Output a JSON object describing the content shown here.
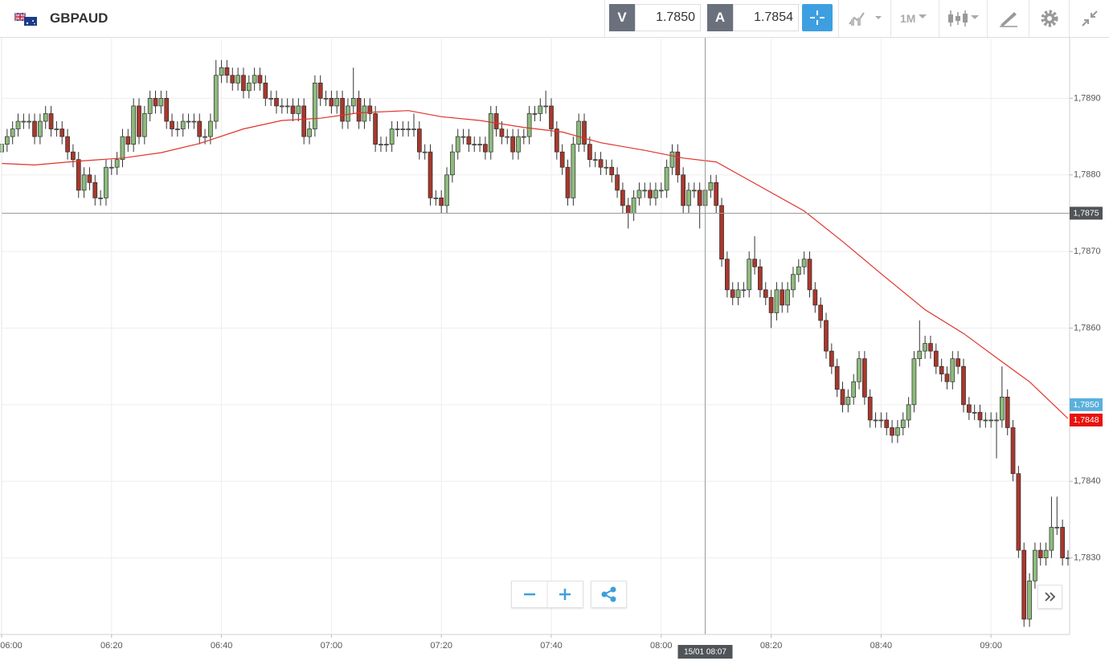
{
  "toolbar": {
    "symbol": "GBPAUD",
    "sell_label": "V",
    "sell_price": "1.7850",
    "buy_label": "A",
    "buy_price": "1.7854",
    "timeframe": "1M"
  },
  "chart_data": {
    "type": "candlestick",
    "open": [
      1.7883,
      1.7884,
      1.7885,
      1.7886,
      1.7887,
      1.7887,
      1.7887,
      1.7885,
      1.7887,
      1.7888,
      1.7886,
      1.7886,
      1.7885,
      1.7883,
      1.7882,
      1.7878,
      1.788,
      1.7879,
      1.7877,
      1.7877,
      1.7881,
      1.7881,
      1.7882,
      1.7885,
      1.7884,
      1.7889,
      1.7885,
      1.7888,
      1.789,
      1.7889,
      1.789,
      1.7887,
      1.7886,
      1.7886,
      1.7887,
      1.7887,
      1.7887,
      1.7885,
      1.7885,
      1.7887,
      1.7893,
      1.7894,
      1.7893,
      1.7892,
      1.7893,
      1.7891,
      1.7892,
      1.7893,
      1.7892,
      1.789,
      1.789,
      1.7889,
      1.7889,
      1.7889,
      1.7888,
      1.7889,
      1.7885,
      1.7886,
      1.7892,
      1.789,
      1.789,
      1.7889,
      1.789,
      1.7887,
      1.7889,
      1.789,
      1.7887,
      1.7889,
      1.7888,
      1.7884,
      1.7884,
      1.7884,
      1.7886,
      1.7886,
      1.7886,
      1.7886,
      1.7886,
      1.7883,
      1.7883,
      1.7877,
      1.7877,
      1.7876,
      1.788,
      1.7883,
      1.7885,
      1.7885,
      1.7884,
      1.7884,
      1.7884,
      1.7883,
      1.7888,
      1.7886,
      1.7885,
      1.7885,
      1.7883,
      1.7885,
      1.7885,
      1.7888,
      1.7888,
      1.7889,
      1.7889,
      1.7886,
      1.7883,
      1.7881,
      1.7877,
      1.7884,
      1.7887,
      1.7884,
      1.7882,
      1.7882,
      1.7881,
      1.7881,
      1.788,
      1.7878,
      1.7876,
      1.7875,
      1.7877,
      1.7878,
      1.7878,
      1.7877,
      1.7878,
      1.7878,
      1.7881,
      1.7883,
      1.788,
      1.7876,
      1.7878,
      1.7878,
      1.7876,
      1.7878,
      1.7879,
      1.7876,
      1.7869,
      1.7865,
      1.7864,
      1.7865,
      1.7865,
      1.7869,
      1.7868,
      1.7865,
      1.7864,
      1.7862,
      1.7865,
      1.7863,
      1.7865,
      1.7867,
      1.7868,
      1.7869,
      1.7865,
      1.7863,
      1.7861,
      1.7857,
      1.7855,
      1.7852,
      1.785,
      1.7851,
      1.7853,
      1.7856,
      1.7851,
      1.7848,
      1.7848,
      1.7848,
      1.7847,
      1.7846,
      1.7847,
      1.7848,
      1.785,
      1.7856,
      1.7857,
      1.7858,
      1.7857,
      1.7855,
      1.7854,
      1.7853,
      1.7856,
      1.7855,
      1.785,
      1.7849,
      1.7849,
      1.7848,
      1.7848,
      1.7848,
      1.7848,
      1.7851,
      1.7847,
      1.7841,
      1.7831,
      1.7822,
      1.7827,
      1.7831,
      1.783,
      1.7831,
      1.7834,
      1.7834,
      1.783
    ],
    "high": [
      1.7885,
      1.7886,
      1.7887,
      1.7888,
      1.7888,
      1.7888,
      1.7888,
      1.7888,
      1.7889,
      1.7889,
      1.7887,
      1.7887,
      1.7886,
      1.7884,
      1.7883,
      1.7881,
      1.7881,
      1.788,
      1.7878,
      1.7882,
      1.7882,
      1.7883,
      1.7886,
      1.7886,
      1.789,
      1.789,
      1.7889,
      1.7891,
      1.7891,
      1.7891,
      1.7891,
      1.7888,
      1.7887,
      1.7888,
      1.7888,
      1.7888,
      1.7888,
      1.7886,
      1.7888,
      1.7895,
      1.7895,
      1.7895,
      1.7894,
      1.7894,
      1.7894,
      1.7893,
      1.7894,
      1.7894,
      1.7893,
      1.7891,
      1.7891,
      1.789,
      1.789,
      1.789,
      1.789,
      1.789,
      1.7887,
      1.7893,
      1.7893,
      1.7891,
      1.7891,
      1.7891,
      1.7891,
      1.789,
      1.7894,
      1.7891,
      1.789,
      1.789,
      1.7889,
      1.7885,
      1.7885,
      1.7887,
      1.7887,
      1.7887,
      1.7887,
      1.7888,
      1.7887,
      1.7884,
      1.7884,
      1.7878,
      1.7878,
      1.7881,
      1.7884,
      1.7886,
      1.7886,
      1.7886,
      1.7885,
      1.7885,
      1.7885,
      1.7889,
      1.7889,
      1.7887,
      1.7886,
      1.7886,
      1.7886,
      1.7886,
      1.7889,
      1.7889,
      1.789,
      1.7891,
      1.789,
      1.7887,
      1.7884,
      1.7882,
      1.7885,
      1.7888,
      1.7888,
      1.7885,
      1.7883,
      1.7883,
      1.7882,
      1.7882,
      1.7881,
      1.7879,
      1.7877,
      1.7878,
      1.7879,
      1.7879,
      1.7879,
      1.7879,
      1.7879,
      1.7882,
      1.7884,
      1.7884,
      1.7881,
      1.7879,
      1.7879,
      1.7879,
      1.7879,
      1.788,
      1.788,
      1.7877,
      1.787,
      1.7866,
      1.7866,
      1.7866,
      1.787,
      1.7872,
      1.7869,
      1.7866,
      1.7865,
      1.7866,
      1.7866,
      1.7866,
      1.7868,
      1.7869,
      1.787,
      1.787,
      1.7866,
      1.7864,
      1.7862,
      1.7858,
      1.7856,
      1.7853,
      1.7852,
      1.7854,
      1.7857,
      1.7857,
      1.7852,
      1.7849,
      1.7849,
      1.7849,
      1.7848,
      1.7848,
      1.7849,
      1.7851,
      1.7857,
      1.7861,
      1.7859,
      1.7859,
      1.7858,
      1.7856,
      1.7855,
      1.7857,
      1.7857,
      1.7856,
      1.7851,
      1.785,
      1.785,
      1.7849,
      1.7849,
      1.7849,
      1.7855,
      1.7852,
      1.7848,
      1.7842,
      1.7832,
      1.7828,
      1.7832,
      1.7832,
      1.7832,
      1.7838,
      1.7838,
      1.7835,
      1.7831
    ],
    "low": [
      1.7882,
      1.7883,
      1.7884,
      1.7885,
      1.7886,
      1.7886,
      1.7884,
      1.7884,
      1.7886,
      1.7885,
      1.7885,
      1.7884,
      1.7882,
      1.7881,
      1.7877,
      1.7877,
      1.7878,
      1.7876,
      1.7876,
      1.7876,
      1.788,
      1.788,
      1.7881,
      1.7883,
      1.7883,
      1.7884,
      1.7884,
      1.7887,
      1.7888,
      1.7888,
      1.7886,
      1.7885,
      1.7885,
      1.7885,
      1.7886,
      1.7886,
      1.7884,
      1.7884,
      1.7884,
      1.7886,
      1.7892,
      1.7892,
      1.7891,
      1.7891,
      1.789,
      1.789,
      1.7891,
      1.7891,
      1.7889,
      1.7889,
      1.7888,
      1.7888,
      1.7888,
      1.7887,
      1.7887,
      1.7884,
      1.7884,
      1.7885,
      1.7889,
      1.7889,
      1.7888,
      1.7888,
      1.7886,
      1.7886,
      1.7888,
      1.7886,
      1.7886,
      1.7887,
      1.7883,
      1.7883,
      1.7883,
      1.7883,
      1.7885,
      1.7885,
      1.7885,
      1.7885,
      1.7882,
      1.7882,
      1.7876,
      1.7876,
      1.7875,
      1.7875,
      1.7879,
      1.7882,
      1.7884,
      1.7883,
      1.7883,
      1.7883,
      1.7882,
      1.7882,
      1.7885,
      1.7884,
      1.7884,
      1.7882,
      1.7882,
      1.7884,
      1.7884,
      1.7887,
      1.7887,
      1.7888,
      1.7885,
      1.7882,
      1.788,
      1.7876,
      1.7876,
      1.7883,
      1.7883,
      1.7881,
      1.7881,
      1.788,
      1.788,
      1.7879,
      1.7877,
      1.7875,
      1.7873,
      1.7874,
      1.7876,
      1.7877,
      1.7876,
      1.7876,
      1.7877,
      1.7877,
      1.788,
      1.7879,
      1.7875,
      1.7875,
      1.7877,
      1.7873,
      1.7875,
      1.7877,
      1.7875,
      1.7868,
      1.7864,
      1.7863,
      1.7863,
      1.7864,
      1.7864,
      1.7867,
      1.7864,
      1.7863,
      1.786,
      1.7861,
      1.7862,
      1.7862,
      1.7864,
      1.7866,
      1.7867,
      1.7864,
      1.7862,
      1.786,
      1.7856,
      1.7854,
      1.7851,
      1.7849,
      1.7849,
      1.785,
      1.7852,
      1.785,
      1.7847,
      1.7847,
      1.7847,
      1.7846,
      1.7845,
      1.7845,
      1.7846,
      1.7847,
      1.7849,
      1.7855,
      1.7856,
      1.7856,
      1.7854,
      1.7853,
      1.7852,
      1.7852,
      1.7854,
      1.7849,
      1.7848,
      1.7848,
      1.7847,
      1.7847,
      1.7847,
      1.7843,
      1.7847,
      1.7846,
      1.784,
      1.783,
      1.7821,
      1.7821,
      1.7826,
      1.7829,
      1.7829,
      1.783,
      1.7833,
      1.7829,
      1.7829
    ],
    "close": [
      1.7884,
      1.7885,
      1.7886,
      1.7887,
      1.7887,
      1.7887,
      1.7885,
      1.7887,
      1.7888,
      1.7886,
      1.7886,
      1.7885,
      1.7883,
      1.7882,
      1.7878,
      1.788,
      1.7879,
      1.7877,
      1.7877,
      1.7881,
      1.7881,
      1.7882,
      1.7885,
      1.7884,
      1.7889,
      1.7885,
      1.7888,
      1.789,
      1.7889,
      1.789,
      1.7887,
      1.7886,
      1.7886,
      1.7887,
      1.7887,
      1.7887,
      1.7885,
      1.7885,
      1.7887,
      1.7893,
      1.7894,
      1.7893,
      1.7892,
      1.7893,
      1.7891,
      1.7892,
      1.7893,
      1.7892,
      1.789,
      1.789,
      1.7889,
      1.7889,
      1.7889,
      1.7888,
      1.7889,
      1.7885,
      1.7886,
      1.7892,
      1.789,
      1.789,
      1.7889,
      1.789,
      1.7887,
      1.7889,
      1.789,
      1.7887,
      1.7889,
      1.7888,
      1.7884,
      1.7884,
      1.7884,
      1.7886,
      1.7886,
      1.7886,
      1.7886,
      1.7886,
      1.7883,
      1.7883,
      1.7877,
      1.7877,
      1.7876,
      1.788,
      1.7883,
      1.7885,
      1.7885,
      1.7884,
      1.7884,
      1.7884,
      1.7883,
      1.7888,
      1.7886,
      1.7885,
      1.7885,
      1.7883,
      1.7885,
      1.7885,
      1.7888,
      1.7888,
      1.7889,
      1.7889,
      1.7886,
      1.7883,
      1.7881,
      1.7877,
      1.7884,
      1.7887,
      1.7884,
      1.7882,
      1.7882,
      1.7881,
      1.7881,
      1.788,
      1.7878,
      1.7876,
      1.7875,
      1.7877,
      1.7878,
      1.7878,
      1.7877,
      1.7878,
      1.7878,
      1.7881,
      1.7883,
      1.788,
      1.7876,
      1.7878,
      1.7878,
      1.7876,
      1.7878,
      1.7879,
      1.7876,
      1.7869,
      1.7865,
      1.7864,
      1.7865,
      1.7865,
      1.7869,
      1.7868,
      1.7865,
      1.7864,
      1.7862,
      1.7865,
      1.7863,
      1.7865,
      1.7867,
      1.7868,
      1.7869,
      1.7865,
      1.7863,
      1.7861,
      1.7857,
      1.7855,
      1.7852,
      1.785,
      1.7851,
      1.7853,
      1.7856,
      1.7851,
      1.7848,
      1.7848,
      1.7848,
      1.7847,
      1.7846,
      1.7847,
      1.7848,
      1.785,
      1.7856,
      1.7857,
      1.7858,
      1.7857,
      1.7855,
      1.7854,
      1.7853,
      1.7856,
      1.7855,
      1.785,
      1.7849,
      1.7849,
      1.7848,
      1.7848,
      1.7848,
      1.7848,
      1.7851,
      1.7847,
      1.7841,
      1.7831,
      1.7822,
      1.7827,
      1.7831,
      1.783,
      1.7831,
      1.7834,
      1.7834,
      1.783,
      1.783
    ],
    "up_color": "#8dbb7c",
    "down_color": "#a8382c",
    "xlim": [
      0,
      194.3
    ],
    "ylim": [
      1.782,
      1.78978
    ],
    "xticks": [
      {
        "value": 0,
        "label": "06:00"
      },
      {
        "value": 20,
        "label": "06:20"
      },
      {
        "value": 40,
        "label": "06:40"
      },
      {
        "value": 60,
        "label": "07:00"
      },
      {
        "value": 80,
        "label": "07:20"
      },
      {
        "value": 100,
        "label": "07:40"
      },
      {
        "value": 120,
        "label": "08:00"
      },
      {
        "value": 140,
        "label": "08:20"
      },
      {
        "value": 160,
        "label": "08:40"
      },
      {
        "value": 180,
        "label": "09:00"
      }
    ],
    "yticks": [
      {
        "value": 1.783,
        "label": "1,7830"
      },
      {
        "value": 1.784,
        "label": "1,7840"
      },
      {
        "value": 1.785,
        "label": "1,7850"
      },
      {
        "value": 1.786,
        "label": "1,7860"
      },
      {
        "value": 1.787,
        "label": "1,7870"
      },
      {
        "value": 1.788,
        "label": "1,7880"
      },
      {
        "value": 1.789,
        "label": "1,7890"
      }
    ],
    "grid": true,
    "moving_average": {
      "color": "#e0332b",
      "x": [
        0,
        6,
        14,
        22,
        29,
        36,
        44,
        51,
        58,
        65,
        74,
        80,
        87,
        95,
        102,
        109,
        117,
        124,
        130,
        135,
        146,
        153,
        160,
        168,
        175,
        182,
        187,
        194
      ],
      "values": [
        1.78815,
        1.78813,
        1.78818,
        1.78822,
        1.78829,
        1.78841,
        1.7886,
        1.78871,
        1.78874,
        1.78881,
        1.78884,
        1.78876,
        1.78871,
        1.78862,
        1.78856,
        1.78842,
        1.78832,
        1.78822,
        1.78817,
        1.78797,
        1.78753,
        1.78713,
        1.78671,
        1.78624,
        1.78593,
        1.78556,
        1.7853,
        1.78482
      ]
    },
    "crosshair": {
      "price": {
        "value": 1.7875,
        "label": "1,7875"
      },
      "time": {
        "value": 128,
        "label": "15/01 08:07"
      }
    },
    "price_labels": [
      {
        "value": 1.785,
        "label": "1,7850",
        "color": "#5ab0dc"
      },
      {
        "value": 1.7848,
        "label": "1,7848",
        "color": "#e8120c"
      }
    ]
  }
}
